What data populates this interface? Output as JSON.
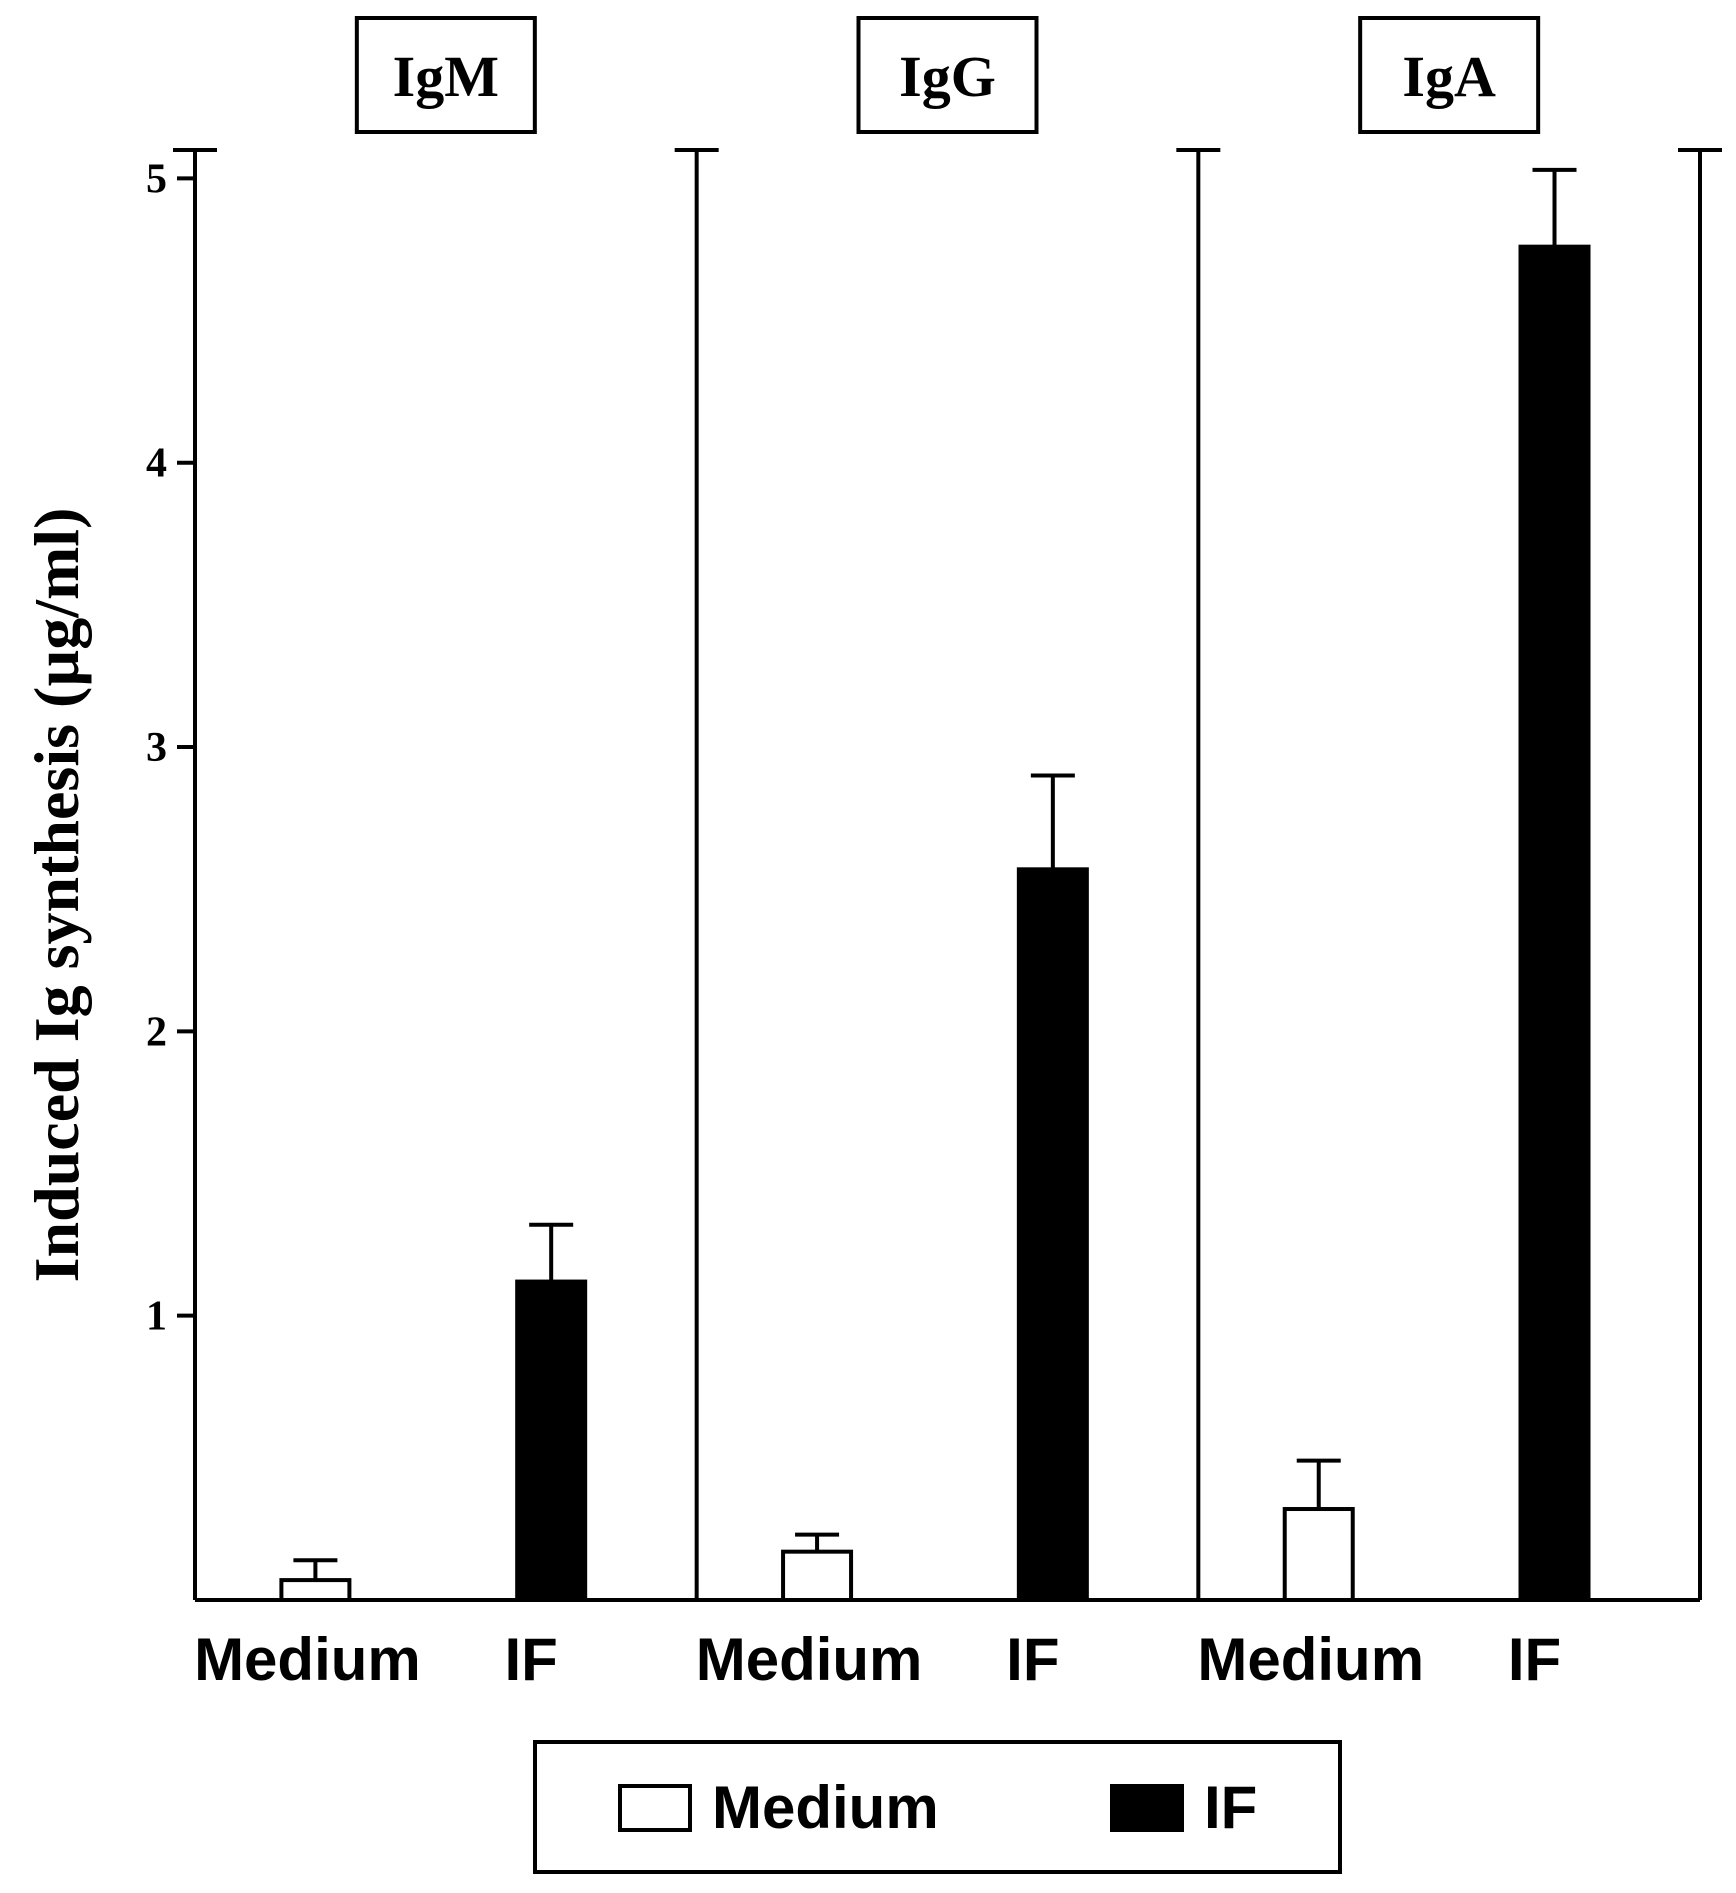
{
  "chart_data": {
    "type": "bar",
    "ylabel": "Induced Ig synthesis (µg/ml)",
    "ylim": [
      0,
      5.1
    ],
    "yticks": [
      1,
      2,
      3,
      4,
      5
    ],
    "panels": [
      {
        "title": "IgM",
        "categories": [
          "Medium",
          "IF"
        ],
        "values": [
          0.07,
          1.12
        ],
        "errors": [
          0.07,
          0.2
        ]
      },
      {
        "title": "IgG",
        "categories": [
          "Medium",
          "IF"
        ],
        "values": [
          0.17,
          2.57
        ],
        "errors": [
          0.06,
          0.33
        ]
      },
      {
        "title": "IgA",
        "categories": [
          "Medium",
          "IF"
        ],
        "values": [
          0.32,
          4.76
        ],
        "errors": [
          0.17,
          0.27
        ]
      }
    ],
    "series": [
      {
        "name": "Medium",
        "color": "#ffffff"
      },
      {
        "name": "IF",
        "color": "#000000"
      }
    ],
    "legend": {
      "position": "bottom-center",
      "items": [
        {
          "label": "Medium",
          "fill": "#ffffff"
        },
        {
          "label": "IF",
          "fill": "#000000"
        }
      ]
    },
    "grid": false
  }
}
